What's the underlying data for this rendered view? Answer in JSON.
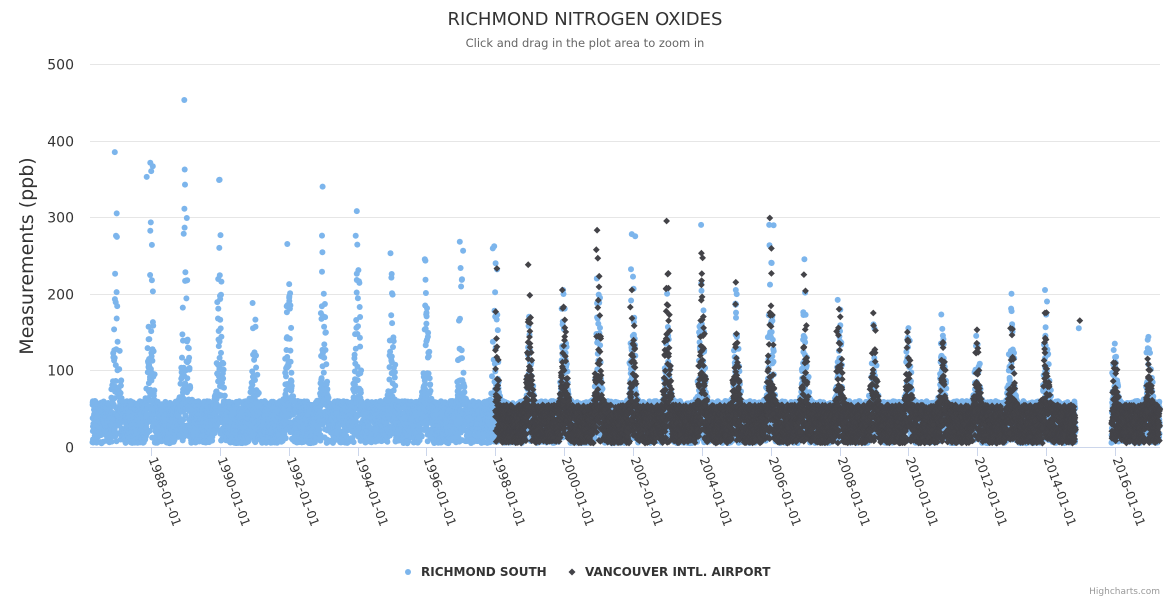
{
  "chart_data": {
    "type": "scatter",
    "title": "RICHMOND NITROGEN OXIDES",
    "subtitle": "Click and drag in the plot area to zoom in",
    "xlabel": "",
    "ylabel": "Measurements (ppb)",
    "ylim": [
      0,
      500
    ],
    "yticks": [
      "0",
      "100",
      "200",
      "300",
      "400",
      "500"
    ],
    "ytick_values": [
      0,
      100,
      200,
      300,
      400,
      500
    ],
    "xlim_years": [
      1986.2,
      2017.4
    ],
    "xticks": [
      "1988-01-01",
      "1990-01-01",
      "1992-01-01",
      "1994-01-01",
      "1996-01-01",
      "1998-01-01",
      "2000-01-01",
      "2002-01-01",
      "2004-01-01",
      "2006-01-01",
      "2008-01-01",
      "2010-01-01",
      "2012-01-01",
      "2014-01-01",
      "2016-01-01"
    ],
    "xtick_years": [
      1988,
      1990,
      1992,
      1994,
      1996,
      1998,
      2000,
      2002,
      2004,
      2006,
      2008,
      2010,
      2012,
      2014,
      2016
    ],
    "grid": true,
    "legend_position": "bottom-center",
    "series": [
      {
        "name": "RICHMOND SOUTH",
        "color": "#7cb5ec",
        "marker": "circle",
        "start_year": 1986.3,
        "end_year": 2017.3,
        "gap": [
          2014.85,
          2015.9
        ],
        "baseline_range": [
          5,
          60
        ],
        "winter_peaks": [
          {
            "winter": 1986,
            "peak": 385
          },
          {
            "winter": 1987,
            "peak": 371
          },
          {
            "winter": 1988,
            "peak": 453
          },
          {
            "winter": 1989,
            "peak": 349
          },
          {
            "winter": 1990,
            "peak": 188
          },
          {
            "winter": 1991,
            "peak": 265
          },
          {
            "winter": 1992,
            "peak": 340
          },
          {
            "winter": 1993,
            "peak": 308
          },
          {
            "winter": 1994,
            "peak": 253
          },
          {
            "winter": 1995,
            "peak": 245
          },
          {
            "winter": 1996,
            "peak": 268
          },
          {
            "winter": 1997,
            "peak": 262
          },
          {
            "winter": 1998,
            "peak": 170
          },
          {
            "winter": 1999,
            "peak": 205
          },
          {
            "winter": 2000,
            "peak": 220
          },
          {
            "winter": 2001,
            "peak": 278
          },
          {
            "winter": 2002,
            "peak": 200
          },
          {
            "winter": 2003,
            "peak": 290
          },
          {
            "winter": 2004,
            "peak": 205
          },
          {
            "winter": 2005,
            "peak": 290
          },
          {
            "winter": 2006,
            "peak": 245
          },
          {
            "winter": 2007,
            "peak": 192
          },
          {
            "winter": 2008,
            "peak": 160
          },
          {
            "winter": 2009,
            "peak": 140
          },
          {
            "winter": 2010,
            "peak": 173
          },
          {
            "winter": 2011,
            "peak": 145
          },
          {
            "winter": 2012,
            "peak": 200
          },
          {
            "winter": 2013,
            "peak": 205
          },
          {
            "winter": 2014,
            "peak": 155
          },
          {
            "winter": 2015,
            "peak": 135
          },
          {
            "winter": 2016,
            "peak": 140
          }
        ]
      },
      {
        "name": "VANCOUVER INTL. AIRPORT",
        "color": "#434348",
        "marker": "diamond",
        "start_year": 1998.0,
        "end_year": 2017.3,
        "gap": [
          2014.85,
          2015.9
        ],
        "baseline_range": [
          5,
          55
        ],
        "winter_peaks": [
          {
            "winter": 1998,
            "peak": 238
          },
          {
            "winter": 1999,
            "peak": 205
          },
          {
            "winter": 2000,
            "peak": 283
          },
          {
            "winter": 2001,
            "peak": 205
          },
          {
            "winter": 2002,
            "peak": 295
          },
          {
            "winter": 2003,
            "peak": 253
          },
          {
            "winter": 2004,
            "peak": 215
          },
          {
            "winter": 2005,
            "peak": 299
          },
          {
            "winter": 2006,
            "peak": 225
          },
          {
            "winter": 2007,
            "peak": 180
          },
          {
            "winter": 2008,
            "peak": 175
          },
          {
            "winter": 2009,
            "peak": 150
          },
          {
            "winter": 2010,
            "peak": 135
          },
          {
            "winter": 2011,
            "peak": 153
          },
          {
            "winter": 2012,
            "peak": 155
          },
          {
            "winter": 2013,
            "peak": 175
          },
          {
            "winter": 2014,
            "peak": 165
          },
          {
            "winter": 2015,
            "peak": 110
          },
          {
            "winter": 2016,
            "peak": 115
          }
        ]
      }
    ]
  },
  "credits": "Highcharts.com"
}
